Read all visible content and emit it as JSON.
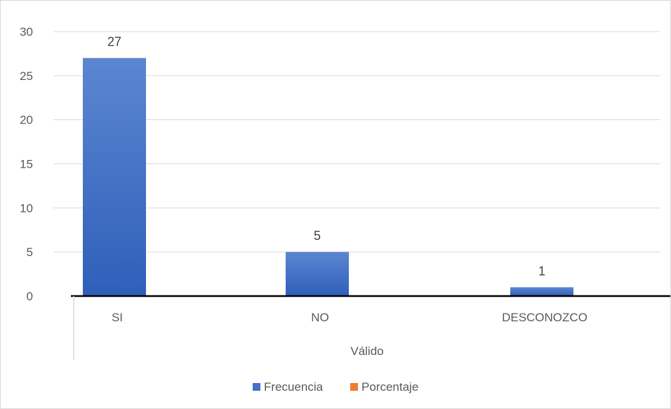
{
  "chart_data": {
    "type": "bar",
    "title": "",
    "categories": [
      "SI",
      "NO",
      "DESCONOZCO"
    ],
    "group_label": "Válido",
    "series": [
      {
        "name": "Frecuencia",
        "values": [
          27,
          5,
          1
        ],
        "color": "#4472c4"
      },
      {
        "name": "Porcentaje",
        "values": [
          null,
          null,
          null
        ],
        "color": "#ed7d31"
      }
    ],
    "data_labels": [
      "27",
      "5",
      "1"
    ],
    "yticks": [
      "0",
      "5",
      "10",
      "15",
      "20",
      "25",
      "30"
    ],
    "ylim": [
      0,
      30
    ],
    "grid": true,
    "legend_position": "bottom"
  }
}
